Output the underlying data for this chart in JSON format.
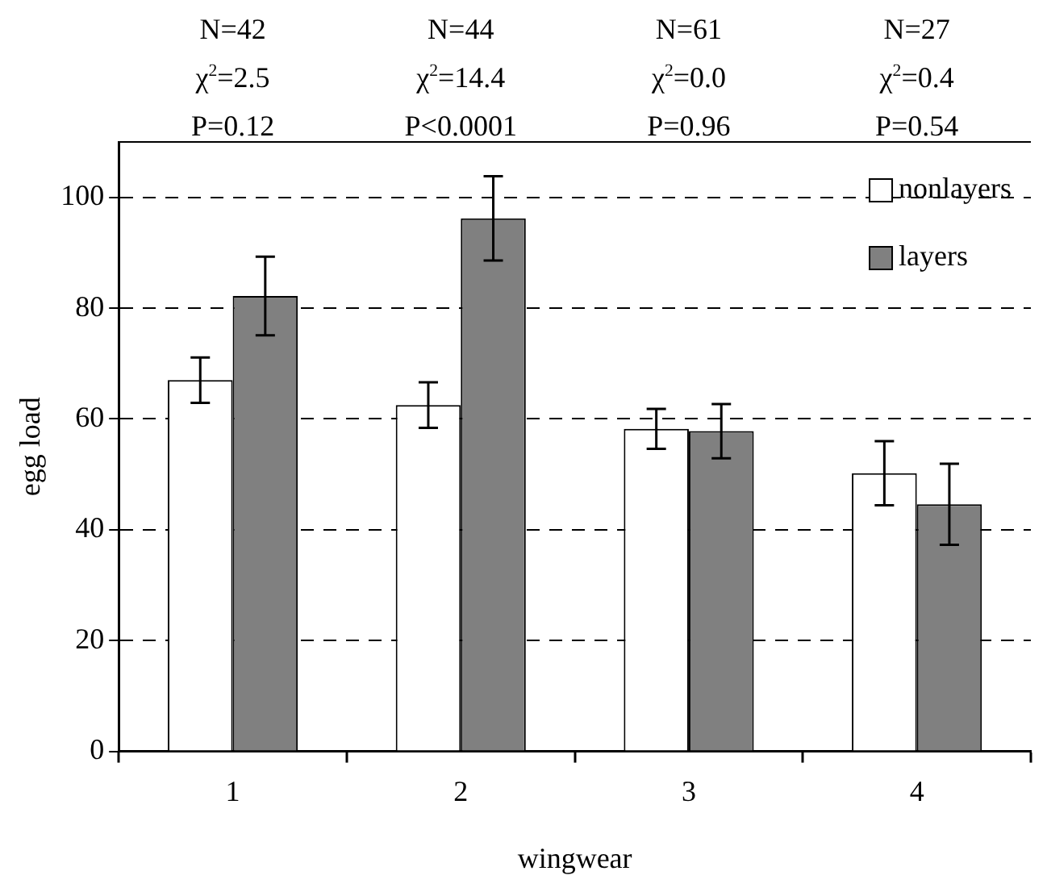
{
  "chart_data": {
    "type": "bar",
    "xlabel": "wingwear",
    "ylabel": "egg load",
    "categories": [
      "1",
      "2",
      "3",
      "4"
    ],
    "series": [
      {
        "name": "nonlayers",
        "color": "#ffffff",
        "values": [
          67.0,
          62.5,
          58.2,
          50.2
        ],
        "errors": [
          4.1,
          4.1,
          3.6,
          5.8
        ]
      },
      {
        "name": "layers",
        "color": "#808080",
        "values": [
          82.2,
          96.2,
          57.8,
          44.6
        ],
        "errors": [
          7.1,
          7.6,
          4.9,
          7.3
        ]
      }
    ],
    "ylim": [
      0,
      110
    ],
    "yticks": [
      0,
      20,
      40,
      60,
      80,
      100
    ],
    "grid": "y",
    "legend": "top right",
    "annotations": [
      "N=42",
      "χ$^{2}$=2.5",
      "P=0.12",
      "N=44",
      "χ$^{2}$=14.4",
      "P<0.0001",
      "N=61",
      "χ$^{2}$=0.0",
      "P=0.96",
      "N=27",
      "χ$^{2}$=0.4",
      "P=0.54"
    ]
  }
}
